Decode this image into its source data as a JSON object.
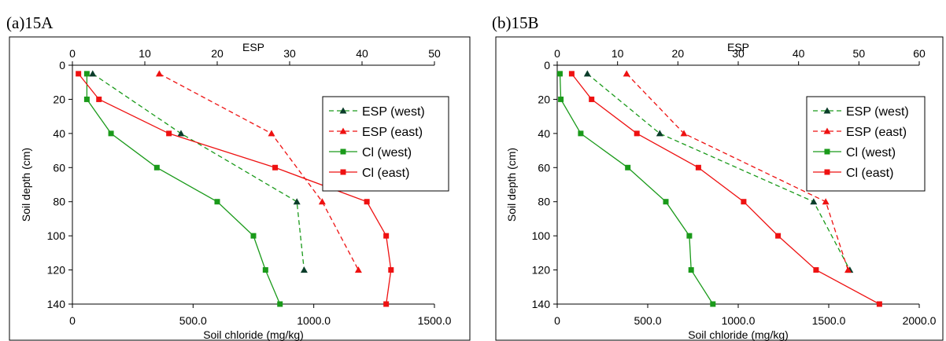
{
  "colors": {
    "west_esp": "#0b3d2a",
    "green": "#1a9a1a",
    "red": "#ee1111",
    "axis": "#000000"
  },
  "chart_data": [
    {
      "type": "line",
      "panel_label": "(a)15A",
      "top_axis_label": "ESP",
      "xlabel": "Soil chloride (mg/kg)",
      "ylabel": "Soil depth (cm)",
      "esp_axis": {
        "min": 0,
        "max": 50,
        "ticks": [
          "0",
          "10",
          "20",
          "30",
          "40",
          "50"
        ]
      },
      "chloride_axis": {
        "min": 0,
        "max": 1500,
        "ticks": [
          "0",
          "500.0",
          "1000.0",
          "1500.0"
        ]
      },
      "depth_axis": {
        "min": 0,
        "max": 140,
        "ticks": [
          "0",
          "20",
          "40",
          "60",
          "80",
          "100",
          "120",
          "140"
        ]
      },
      "legend_position": "top-right",
      "series": [
        {
          "name": "ESP (west)",
          "axis": "esp",
          "marker": "triangle",
          "color": "#0b3d2a",
          "line_color": "#1a9a1a",
          "dashed": true,
          "points": [
            [
              2.8,
              5
            ],
            [
              15,
              40
            ],
            [
              31,
              80
            ],
            [
              32,
              120
            ]
          ]
        },
        {
          "name": "ESP (east)",
          "axis": "esp",
          "marker": "triangle",
          "color": "#ee1111",
          "line_color": "#ee1111",
          "dashed": true,
          "points": [
            [
              12,
              5
            ],
            [
              27.5,
              40
            ],
            [
              34.5,
              80
            ],
            [
              39.5,
              120
            ]
          ]
        },
        {
          "name": "Cl (west)",
          "axis": "chloride",
          "marker": "square",
          "color": "#1a9a1a",
          "line_color": "#1a9a1a",
          "dashed": false,
          "points": [
            [
              60,
              5
            ],
            [
              60,
              20
            ],
            [
              160,
              40
            ],
            [
              350,
              60
            ],
            [
              600,
              80
            ],
            [
              750,
              100
            ],
            [
              800,
              120
            ],
            [
              860,
              140
            ]
          ]
        },
        {
          "name": "Cl (east)",
          "axis": "chloride",
          "marker": "square",
          "color": "#ee1111",
          "line_color": "#ee1111",
          "dashed": false,
          "points": [
            [
              25,
              5
            ],
            [
              110,
              20
            ],
            [
              400,
              40
            ],
            [
              840,
              60
            ],
            [
              1220,
              80
            ],
            [
              1300,
              100
            ],
            [
              1320,
              120
            ],
            [
              1300,
              140
            ]
          ]
        }
      ]
    },
    {
      "type": "line",
      "panel_label": "(b)15B",
      "top_axis_label": "ESP",
      "xlabel": "Soil chloride (mg/kg)",
      "ylabel": "Soil depth (cm)",
      "esp_axis": {
        "min": 0,
        "max": 60,
        "ticks": [
          "0",
          "10",
          "20",
          "30",
          "40",
          "50",
          "60"
        ]
      },
      "chloride_axis": {
        "min": 0,
        "max": 2000,
        "ticks": [
          "0",
          "500.0",
          "1000.0",
          "1500.0",
          "2000.0"
        ]
      },
      "depth_axis": {
        "min": 0,
        "max": 140,
        "ticks": [
          "0",
          "20",
          "40",
          "60",
          "80",
          "100",
          "120",
          "140"
        ]
      },
      "legend_position": "top-right",
      "series": [
        {
          "name": "ESP (west)",
          "axis": "esp",
          "marker": "triangle",
          "color": "#0b3d2a",
          "line_color": "#1a9a1a",
          "dashed": true,
          "points": [
            [
              5,
              5
            ],
            [
              17,
              40
            ],
            [
              42.5,
              80
            ],
            [
              48.5,
              120
            ]
          ]
        },
        {
          "name": "ESP (east)",
          "axis": "esp",
          "marker": "triangle",
          "color": "#ee1111",
          "line_color": "#ee1111",
          "dashed": true,
          "points": [
            [
              11.5,
              5
            ],
            [
              21,
              40
            ],
            [
              44.5,
              80
            ],
            [
              48.2,
              120
            ]
          ]
        },
        {
          "name": "Cl (west)",
          "axis": "chloride",
          "marker": "square",
          "color": "#1a9a1a",
          "line_color": "#1a9a1a",
          "dashed": false,
          "points": [
            [
              15,
              5
            ],
            [
              20,
              20
            ],
            [
              130,
              40
            ],
            [
              390,
              60
            ],
            [
              600,
              80
            ],
            [
              730,
              100
            ],
            [
              740,
              120
            ],
            [
              860,
              140
            ]
          ]
        },
        {
          "name": "Cl (east)",
          "axis": "chloride",
          "marker": "square",
          "color": "#ee1111",
          "line_color": "#ee1111",
          "dashed": false,
          "points": [
            [
              80,
              5
            ],
            [
              190,
              20
            ],
            [
              440,
              40
            ],
            [
              780,
              60
            ],
            [
              1030,
              80
            ],
            [
              1220,
              100
            ],
            [
              1430,
              120
            ],
            [
              1780,
              140
            ]
          ]
        }
      ]
    }
  ]
}
